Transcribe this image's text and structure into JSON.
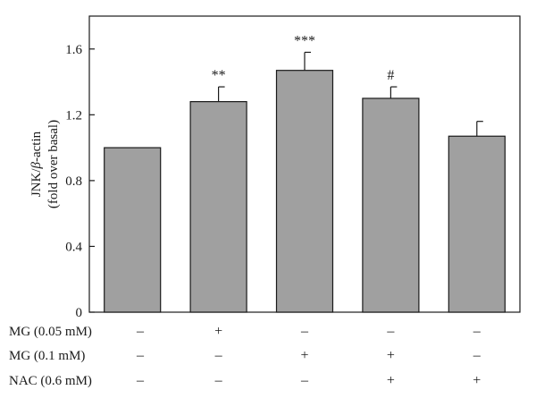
{
  "chart_data": {
    "type": "bar",
    "ylabel_main": "JNK/",
    "ylabel_beta": "β",
    "ylabel_rest": "-actin",
    "ylabel_sub": "(fold over basal)",
    "ylim": [
      0,
      1.8
    ],
    "yticks": [
      0,
      0.4,
      0.8,
      1.2,
      1.6
    ],
    "ytick_labels": [
      "0",
      "0.4",
      "0.8",
      "1.2",
      "1.6"
    ],
    "values": [
      1.0,
      1.28,
      1.47,
      1.3,
      1.07
    ],
    "errors": [
      0,
      0.09,
      0.11,
      0.07,
      0.09
    ],
    "significance": [
      "",
      "**",
      "***",
      "#",
      ""
    ],
    "bar_color": "#a0a0a0",
    "bar_edge": "#1a1a1a",
    "conditions": [
      {
        "label": "MG (0.05 mM)",
        "signs": [
          "–",
          "+",
          "–",
          "–",
          "–"
        ]
      },
      {
        "label": "MG (0.1 mM)",
        "signs": [
          "–",
          "–",
          "+",
          "+",
          "–"
        ]
      },
      {
        "label": "NAC (0.6 mM)",
        "signs": [
          "–",
          "–",
          "–",
          "+",
          "+"
        ]
      }
    ]
  }
}
